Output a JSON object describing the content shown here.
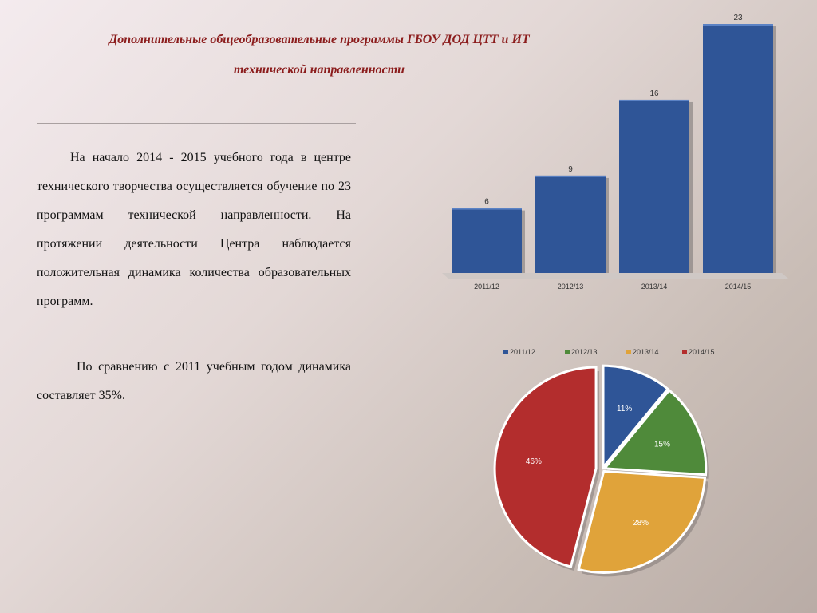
{
  "slide": {
    "title_line1": "Дополнительные общеобразовательные программы ГБОУ ДОД ЦТТ и ИТ",
    "title_line2": "технической направленности",
    "paragraph1": "На начало  2014 - 2015 учебного года в центре технического творчества осуществляется обучение по 23 программам технической направленности. На протяжении деятельности Центра наблюдается положительная динамика количества образовательных программ.",
    "paragraph2": "По сравнению с 2011 учебным годом динамика составляет  35%."
  },
  "colors": {
    "title": "#8b1c1c",
    "bar": "#2f5597",
    "series": [
      "#2f5597",
      "#4f8a3a",
      "#e0a33a",
      "#b32d2d"
    ]
  },
  "chart_data": [
    {
      "type": "bar",
      "categories": [
        "2011/12",
        "2012/13",
        "2013/14",
        "2014/15"
      ],
      "values": [
        6,
        9,
        16,
        23
      ],
      "data_labels": [
        "6",
        "9",
        "16",
        "23"
      ],
      "title": "",
      "xlabel": "",
      "ylabel": "",
      "ylim": [
        0,
        23
      ],
      "grid": false
    },
    {
      "type": "pie",
      "categories": [
        "2011/12",
        "2012/13",
        "2013/14",
        "2014/15"
      ],
      "values": [
        11,
        15,
        28,
        46
      ],
      "data_labels": [
        "11%",
        "15%",
        "28%",
        "46%"
      ],
      "legend": "top",
      "title": ""
    }
  ]
}
